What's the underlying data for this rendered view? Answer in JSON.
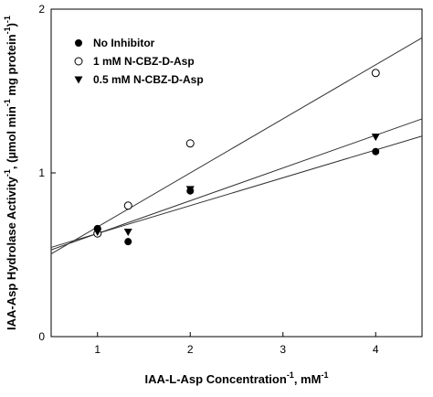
{
  "chart_data": {
    "type": "scatter",
    "xlabel": {
      "main": "IAA-L-Asp Concentration",
      "sup": "-1",
      "tail": ", mM",
      "sup2": "-1"
    },
    "ylabel": {
      "main": "IAA-Asp Hydrolase Activity",
      "sup": "-1",
      "tail": ", (µmol min",
      "sup2": "-1",
      "tail2": " mg protein",
      "sup3": "-1",
      "tail3": ")",
      "sup4": "-1"
    },
    "xlim": [
      0.5,
      4.5
    ],
    "ylim": [
      0,
      2
    ],
    "x_ticks": [
      1,
      2,
      3,
      4
    ],
    "y_ticks": [
      0,
      1,
      2
    ],
    "grid": false,
    "legend_position": "top-left",
    "series": [
      {
        "name": "No Inhibitor",
        "marker": "filled-circle",
        "x": [
          1,
          1.33,
          2,
          4
        ],
        "y": [
          0.66,
          0.58,
          0.89,
          1.13
        ],
        "fit": {
          "intercept": 0.46,
          "slope": 0.17
        }
      },
      {
        "name": "1 mM N-CBZ-D-Asp",
        "marker": "open-circle",
        "x": [
          1,
          1.33,
          2,
          4
        ],
        "y": [
          0.63,
          0.8,
          1.18,
          1.61
        ],
        "fit": {
          "intercept": 0.34,
          "slope": 0.33
        }
      },
      {
        "name": "0.5 mM N-CBZ-D-Asp",
        "marker": "filled-triangle-down",
        "x": [
          1,
          1.33,
          2,
          4
        ],
        "y": [
          0.64,
          0.64,
          0.9,
          1.22
        ],
        "fit": {
          "intercept": 0.43,
          "slope": 0.2
        }
      }
    ]
  },
  "colors": {
    "ink": "#000000",
    "line": "#333333",
    "background": "#ffffff"
  }
}
